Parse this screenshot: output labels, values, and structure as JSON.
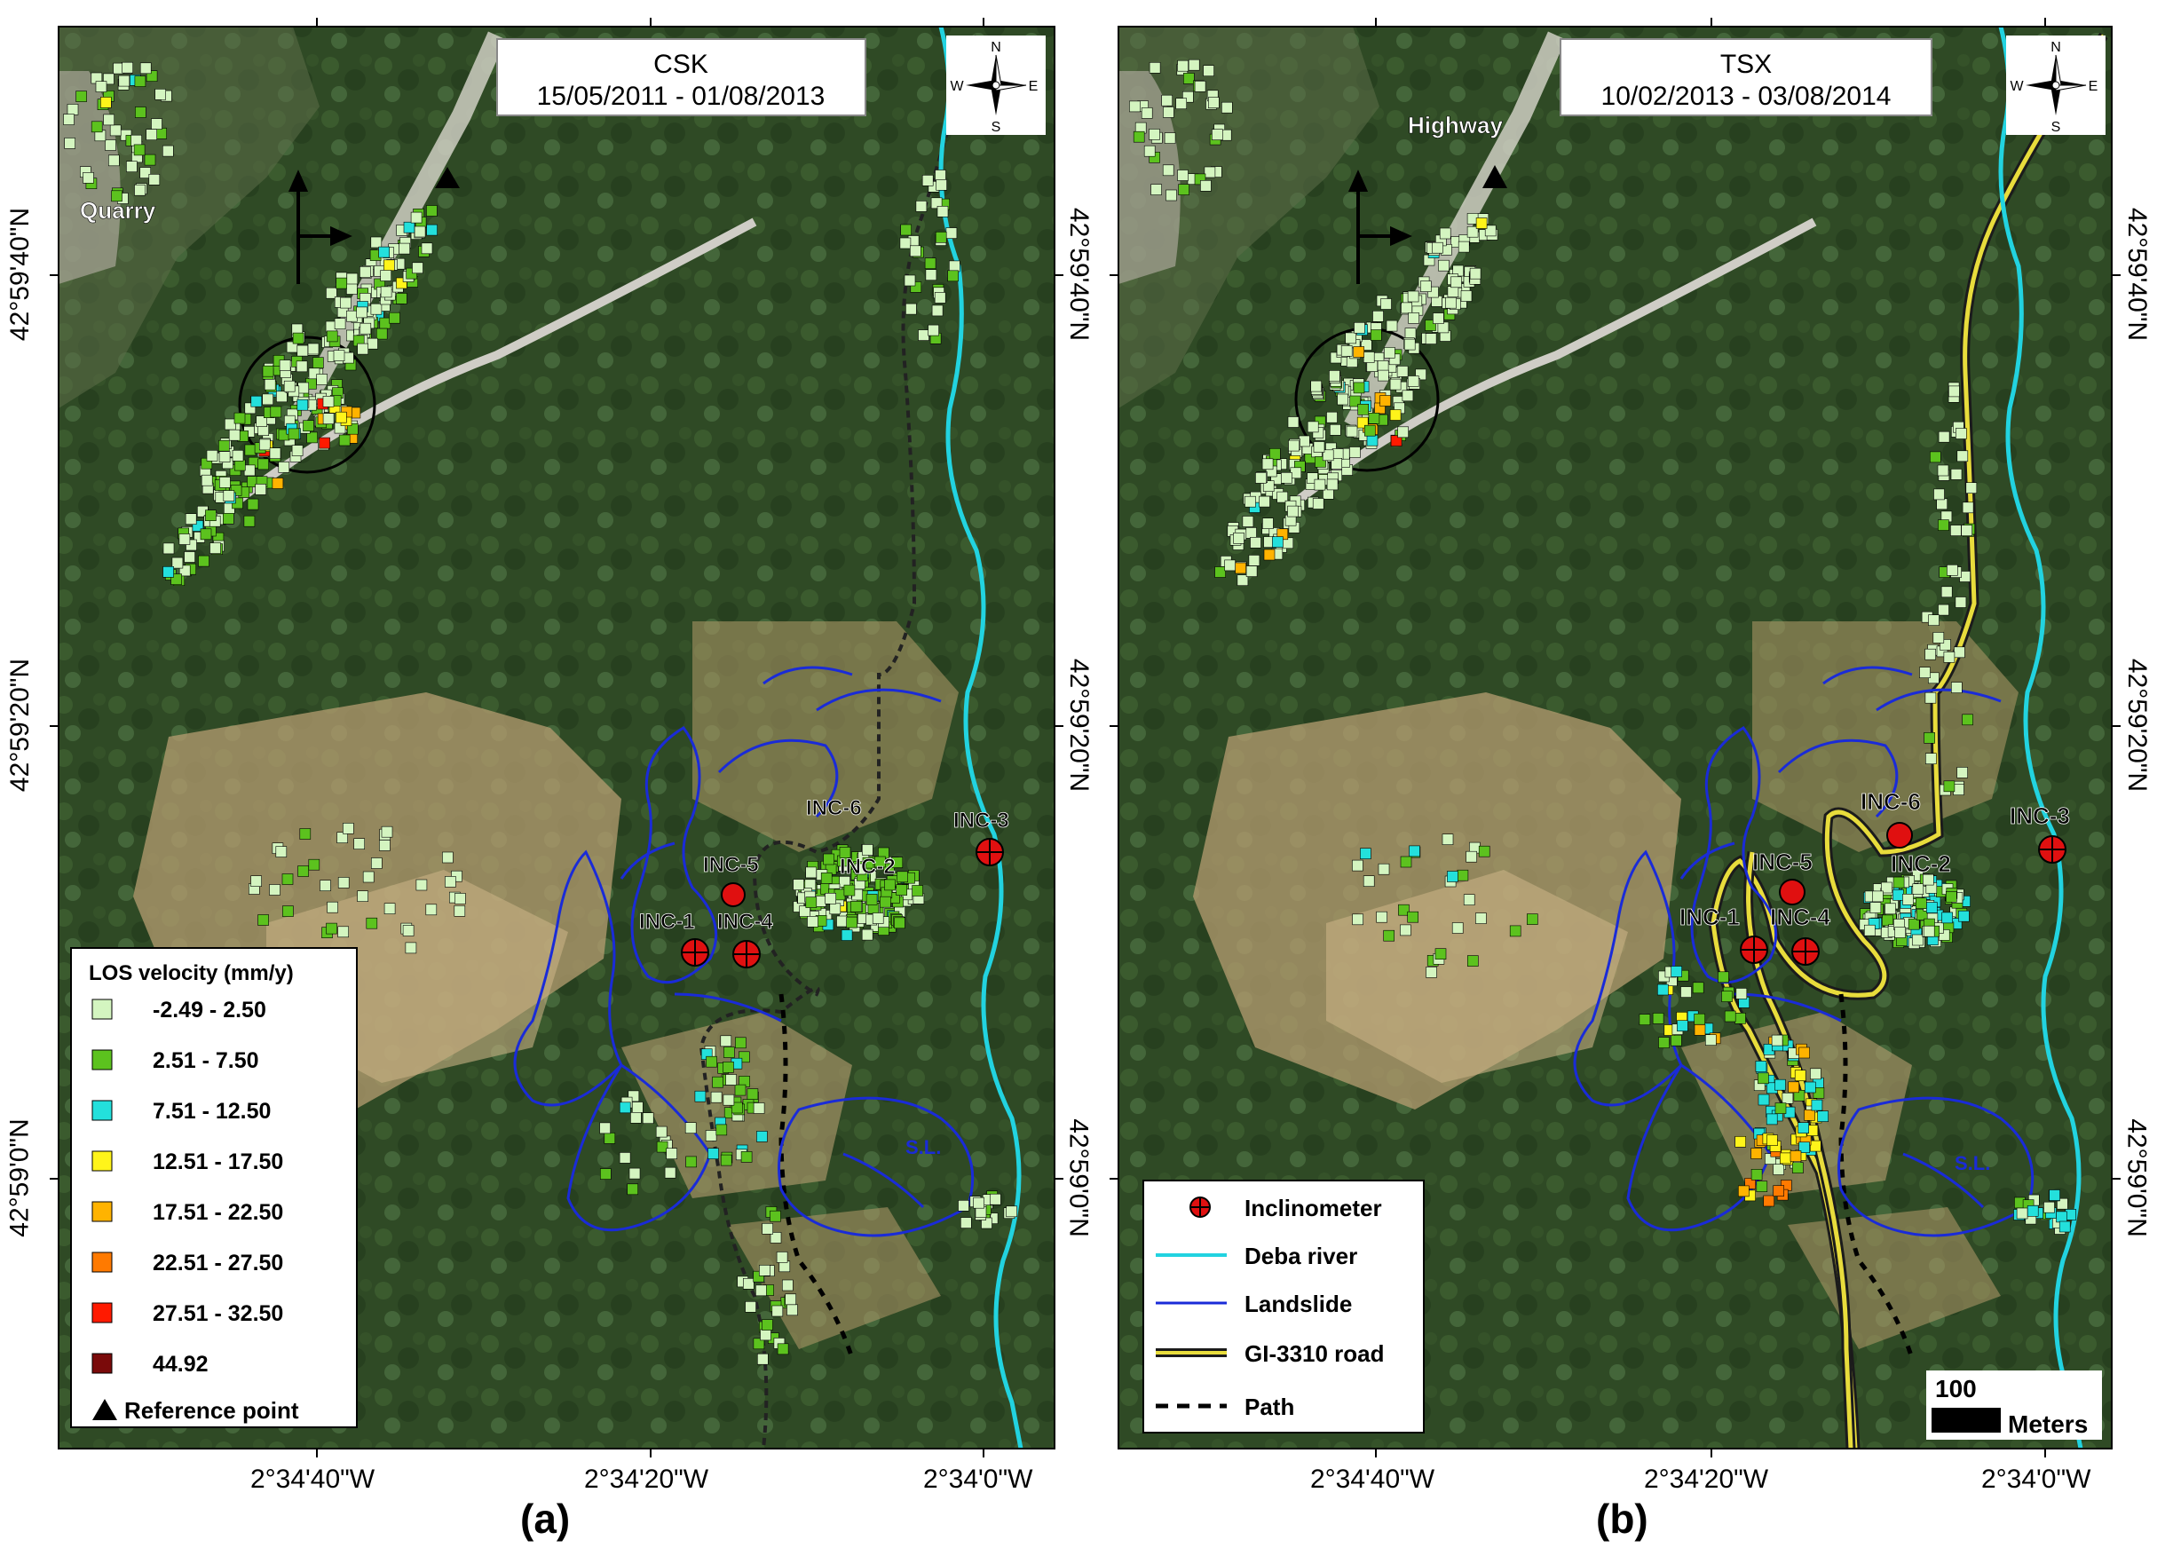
{
  "panel_a": {
    "letter": "(a)",
    "satellite": "CSK",
    "dates": "15/05/2011 - 01/08/2013"
  },
  "panel_b": {
    "letter": "(b)",
    "satellite": "TSX",
    "dates": "10/02/2013 - 03/08/2014"
  },
  "latitude_labels": [
    "42°59'40\"N",
    "42°59'20\"N",
    "42°59'0\"N"
  ],
  "longitude_labels": [
    "2°34'40\"W",
    "2°34'20\"W",
    "2°34'0\"W"
  ],
  "compass": {
    "n": "N",
    "s": "S",
    "e": "E",
    "w": "W"
  },
  "places": {
    "quarry": "Quarry",
    "highway": "Highway",
    "sl": "S.L."
  },
  "inclinometers": [
    "INC-1",
    "INC-2",
    "INC-3",
    "INC-4",
    "INC-5",
    "INC-6"
  ],
  "legend_velocity": {
    "title": "LOS velocity (mm/y)",
    "classes": [
      {
        "label": "-2.49 - 2.50",
        "color": "#d4f5c0"
      },
      {
        "label": "2.51 - 7.50",
        "color": "#5cc21e"
      },
      {
        "label": "7.51 - 12.50",
        "color": "#23e0dc"
      },
      {
        "label": "12.51 - 17.50",
        "color": "#fff41a"
      },
      {
        "label": "17.51 - 22.50",
        "color": "#ffb300"
      },
      {
        "label": "22.51 - 27.50",
        "color": "#ff7a00"
      },
      {
        "label": "27.51 - 32.50",
        "color": "#ff1a00"
      },
      {
        "label": "44.92",
        "color": "#7a0a0a"
      }
    ],
    "reference_point": "Reference point"
  },
  "legend_features": {
    "inclinometer": "Inclinometer",
    "river": "Deba river",
    "landslide": "Landslide",
    "road": "GI-3310 road",
    "path": "Path"
  },
  "scale_bar": {
    "value": "100",
    "unit": "Meters"
  },
  "colors": {
    "river": "#22d3e0",
    "landslide": "#1a2bd8",
    "inclinometer": "#e01010",
    "road": "#e8dc3c"
  }
}
